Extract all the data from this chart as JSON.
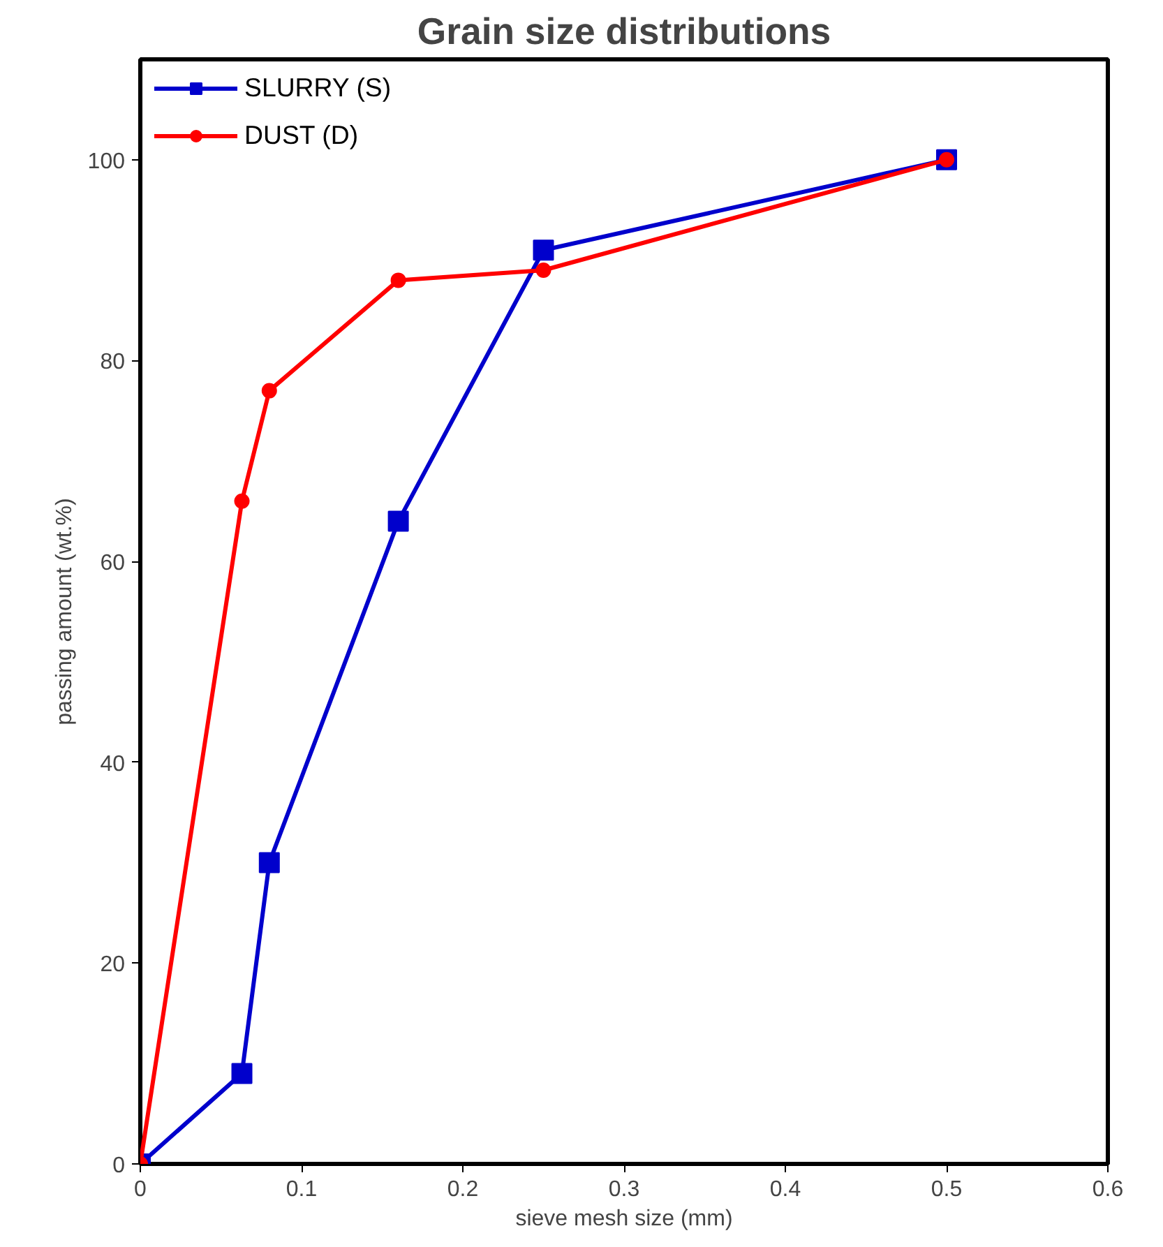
{
  "chart_data": {
    "type": "line",
    "title": "Grain size distributions",
    "xlabel": "sieve mesh size (mm)",
    "ylabel": "passing amount (wt.%)",
    "xlim": [
      0,
      0.6
    ],
    "xticks": [
      0,
      0.1,
      0.2,
      0.3,
      0.4,
      0.5,
      0.6
    ],
    "ylim": [
      0,
      110
    ],
    "yticks": [
      0,
      20,
      40,
      60,
      80,
      100
    ],
    "grid": false,
    "legend": "top left",
    "series": [
      {
        "name": "SLURRY (S)",
        "color": "#0000cc",
        "marker": "square",
        "x": [
          0,
          0.063,
          0.08,
          0.16,
          0.25,
          0.5
        ],
        "values": [
          0,
          9,
          30,
          64,
          91,
          100
        ]
      },
      {
        "name": "DUST (D)",
        "color": "#ff0000",
        "marker": "circle",
        "x": [
          0,
          0.063,
          0.08,
          0.16,
          0.25,
          0.5
        ],
        "values": [
          0,
          66,
          77,
          88,
          89,
          100
        ]
      }
    ]
  }
}
